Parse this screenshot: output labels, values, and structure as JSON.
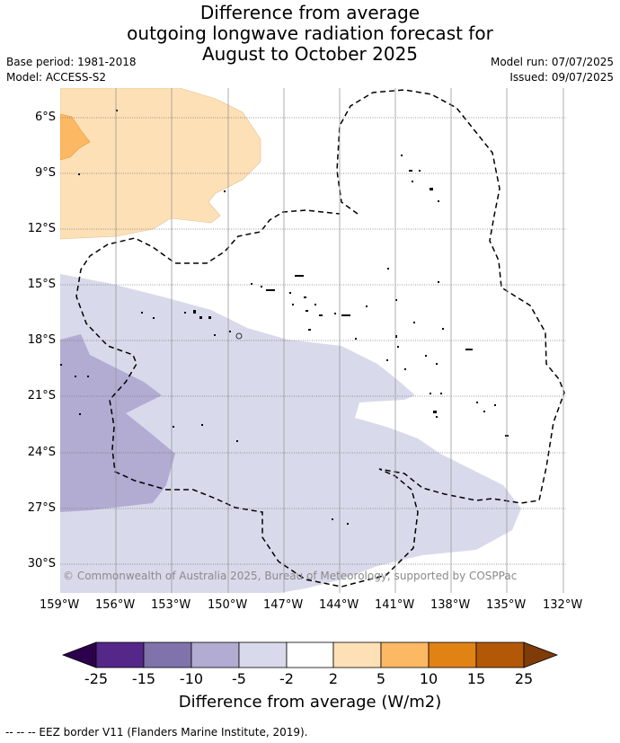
{
  "title": {
    "line1": "Difference from average",
    "line2": "outgoing longwave radiation forecast for",
    "line3": "August to October 2025"
  },
  "meta": {
    "base_period": "Base period: 1981-2018",
    "model": "Model: ACCESS-S2",
    "model_run": "Model run: 07/07/2025",
    "issued": "Issued: 09/07/2025"
  },
  "map": {
    "lat_labels": [
      "6°S",
      "9°S",
      "12°S",
      "15°S",
      "18°S",
      "21°S",
      "24°S",
      "27°S",
      "30°S"
    ],
    "lon_labels": [
      "159°W",
      "156°W",
      "153°W",
      "150°W",
      "147°W",
      "144°W",
      "141°W",
      "138°W",
      "135°W",
      "132°W"
    ],
    "copyright": "© Commonwealth of Australia 2025, Bureau of Meteorology, supported by COSPPac"
  },
  "colorbar": {
    "labels": [
      "-25",
      "-15",
      "-10",
      "-5",
      "-2",
      "2",
      "5",
      "10",
      "15",
      "25"
    ],
    "colors": [
      "#2d004b",
      "#542788",
      "#8073ac",
      "#b2abd2",
      "#d8daeb",
      "#ffffff",
      "#fee0b6",
      "#fdb863",
      "#e08214",
      "#b35806",
      "#7f3b08"
    ],
    "title": "Difference from average (W/m2)"
  },
  "footer": "--  --  -- EEZ border V11 (Flanders Marine Institute, 2019)."
}
